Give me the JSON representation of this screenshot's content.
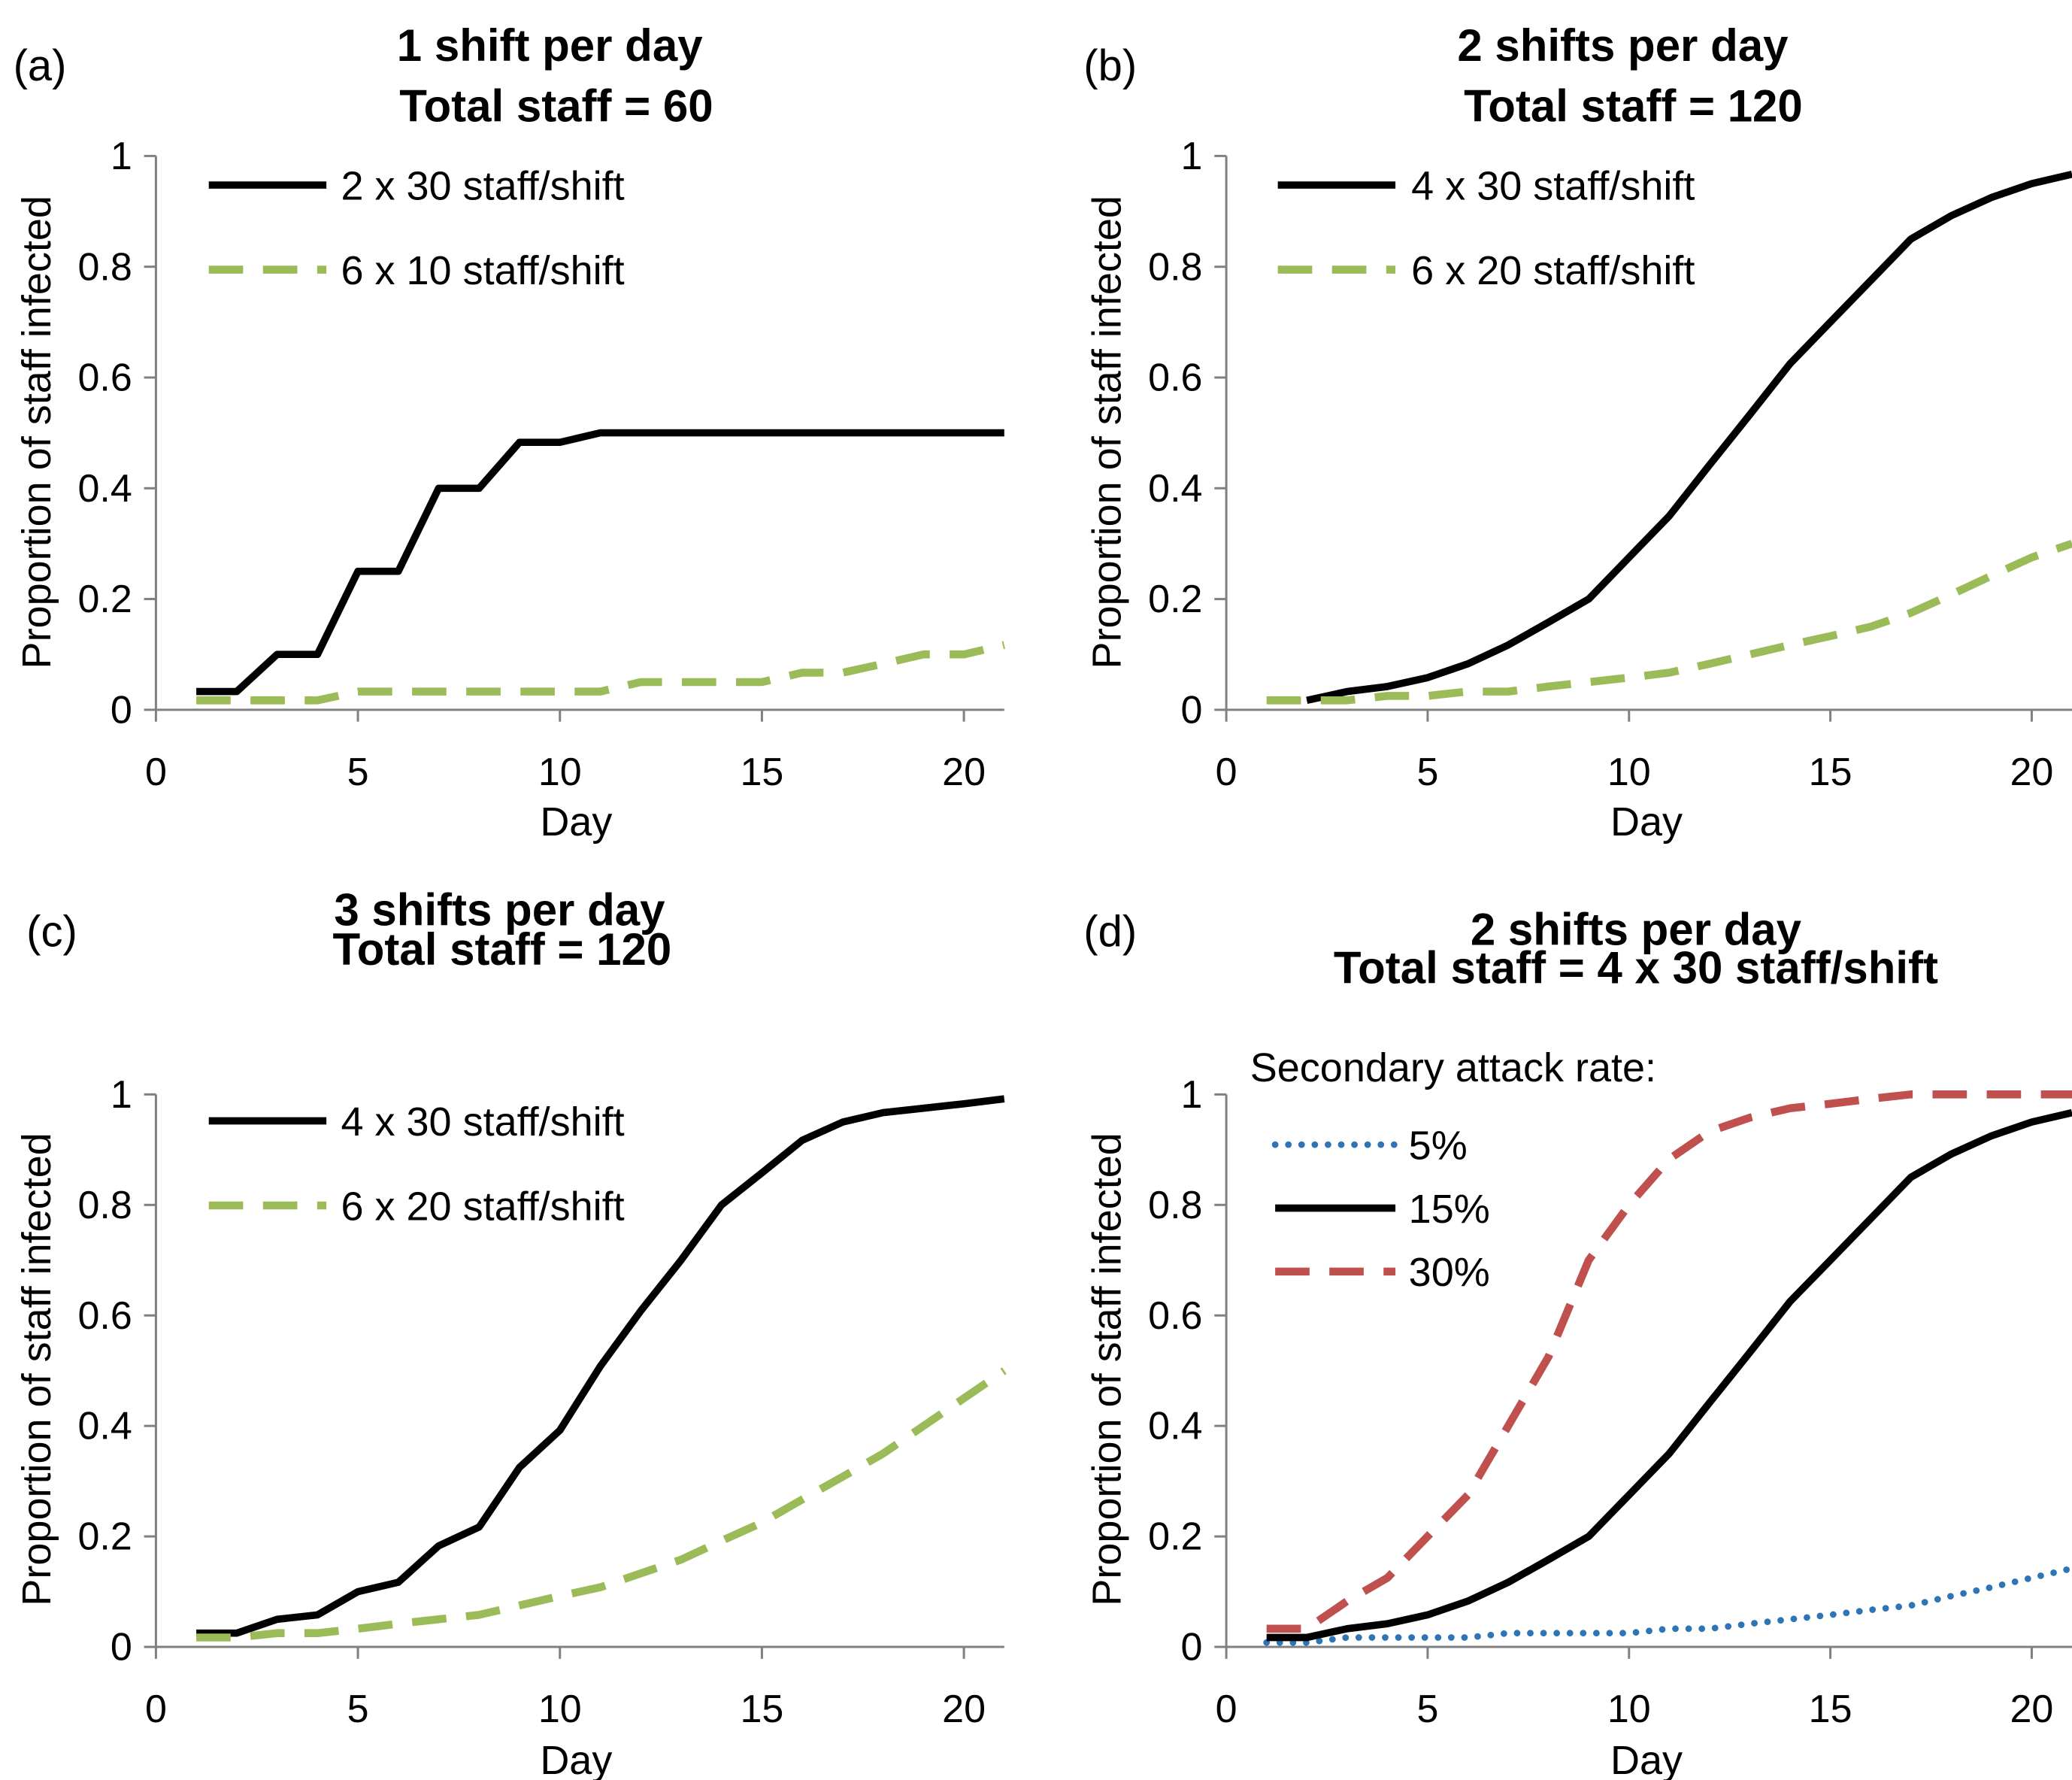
{
  "chart_data": [
    {
      "type": "line",
      "panel_label": "(a)",
      "title": "1 shift per day",
      "subtitle": "Total staff = 60",
      "xlabel": "Day",
      "ylabel": "Proportion of staff infected",
      "xlim": [
        0,
        21
      ],
      "ylim": [
        0,
        1
      ],
      "xticks": [
        "0",
        "5",
        "10",
        "15",
        "20"
      ],
      "yticks": [
        "0",
        "0.2",
        "0.4",
        "0.6",
        "0.8",
        "1"
      ],
      "grid": false,
      "legend_position": "top-left",
      "series": [
        {
          "name": "2 x 30 staff/shift",
          "color": "#000000",
          "style": "solid",
          "x": [
            1,
            2,
            3,
            4,
            5,
            6,
            7,
            8,
            9,
            10,
            11,
            12,
            13,
            14,
            15,
            16,
            17,
            18,
            19,
            20,
            21
          ],
          "y": [
            0.033,
            0.033,
            0.1,
            0.1,
            0.25,
            0.25,
            0.4,
            0.4,
            0.483,
            0.483,
            0.5,
            0.5,
            0.5,
            0.5,
            0.5,
            0.5,
            0.5,
            0.5,
            0.5,
            0.5,
            0.5
          ]
        },
        {
          "name": "6 x 10 staff/shift",
          "color": "#9BBB59",
          "style": "dashed",
          "x": [
            1,
            2,
            3,
            4,
            5,
            6,
            7,
            8,
            9,
            10,
            11,
            12,
            13,
            14,
            15,
            16,
            17,
            18,
            19,
            20,
            21
          ],
          "y": [
            0.017,
            0.017,
            0.017,
            0.017,
            0.033,
            0.033,
            0.033,
            0.033,
            0.033,
            0.033,
            0.033,
            0.05,
            0.05,
            0.05,
            0.05,
            0.067,
            0.067,
            0.083,
            0.1,
            0.1,
            0.117
          ]
        }
      ]
    },
    {
      "type": "line",
      "panel_label": "(b)",
      "title": "2 shifts per day",
      "subtitle": "Total staff = 120",
      "xlabel": "Day",
      "ylabel": "Proportion of staff infected",
      "xlim": [
        0,
        21
      ],
      "ylim": [
        0,
        1
      ],
      "xticks": [
        "0",
        "5",
        "10",
        "15",
        "20"
      ],
      "yticks": [
        "0",
        "0.2",
        "0.4",
        "0.6",
        "0.8",
        "1"
      ],
      "grid": false,
      "legend_position": "top-left",
      "series": [
        {
          "name": "4 x 30 staff/shift",
          "color": "#000000",
          "style": "solid",
          "x": [
            2,
            3,
            4,
            5,
            6,
            7,
            8,
            9,
            10,
            11,
            12,
            13,
            14,
            15,
            16,
            17,
            18,
            19,
            20,
            21
          ],
          "y": [
            0.017,
            0.033,
            0.042,
            0.058,
            0.083,
            0.117,
            0.158,
            0.2,
            0.275,
            0.35,
            0.442,
            0.533,
            0.625,
            0.7,
            0.775,
            0.85,
            0.892,
            0.925,
            0.95,
            0.967
          ]
        },
        {
          "name": "6 x 20 staff/shift",
          "color": "#9BBB59",
          "style": "dashed",
          "x": [
            1,
            2,
            3,
            4,
            5,
            6,
            7,
            8,
            9,
            10,
            11,
            12,
            13,
            14,
            15,
            16,
            17,
            18,
            19,
            20,
            21
          ],
          "y": [
            0.017,
            0.017,
            0.017,
            0.025,
            0.025,
            0.033,
            0.033,
            0.042,
            0.05,
            0.058,
            0.067,
            0.083,
            0.1,
            0.117,
            0.133,
            0.15,
            0.175,
            0.208,
            0.242,
            0.275,
            0.3
          ]
        }
      ]
    },
    {
      "type": "line",
      "panel_label": "(c)",
      "title": "3 shifts per day",
      "subtitle": "Total staff = 120",
      "xlabel": "Day",
      "ylabel": "Proportion of staff infected",
      "xlim": [
        0,
        21
      ],
      "ylim": [
        0,
        1
      ],
      "xticks": [
        "0",
        "5",
        "10",
        "15",
        "20"
      ],
      "yticks": [
        "0",
        "0.2",
        "0.4",
        "0.6",
        "0.8",
        "1"
      ],
      "grid": false,
      "legend_position": "top-left",
      "series": [
        {
          "name": "4 x 30 staff/shift",
          "color": "#000000",
          "style": "solid",
          "x": [
            1,
            2,
            3,
            4,
            5,
            6,
            7,
            8,
            9,
            10,
            11,
            12,
            13,
            14,
            15,
            16,
            17,
            18,
            19,
            20,
            21
          ],
          "y": [
            0.025,
            0.025,
            0.05,
            0.058,
            0.1,
            0.117,
            0.183,
            0.217,
            0.325,
            0.392,
            0.508,
            0.608,
            0.7,
            0.8,
            0.858,
            0.917,
            0.95,
            0.967,
            0.975,
            0.983,
            0.992
          ]
        },
        {
          "name": "6 x 20 staff/shift",
          "color": "#9BBB59",
          "style": "dashed",
          "x": [
            1,
            2,
            3,
            4,
            5,
            6,
            7,
            8,
            9,
            10,
            11,
            12,
            13,
            14,
            15,
            16,
            17,
            18,
            19,
            20,
            21
          ],
          "y": [
            0.017,
            0.017,
            0.025,
            0.025,
            0.033,
            0.042,
            0.05,
            0.058,
            0.075,
            0.092,
            0.108,
            0.133,
            0.158,
            0.192,
            0.225,
            0.267,
            0.308,
            0.35,
            0.4,
            0.45,
            0.5
          ]
        }
      ]
    },
    {
      "type": "line",
      "panel_label": "(d)",
      "title": "2 shifts per day",
      "subtitle": "Total staff = 4 x 30 staff/shift",
      "xlabel": "Day",
      "ylabel": "Proportion of staff infected",
      "xlim": [
        0,
        21
      ],
      "ylim": [
        0,
        1
      ],
      "xticks": [
        "0",
        "5",
        "10",
        "15",
        "20"
      ],
      "yticks": [
        "0",
        "0.2",
        "0.4",
        "0.6",
        "0.8",
        "1"
      ],
      "grid": false,
      "legend_position": "top-left",
      "legend_title": "Secondary attack rate:",
      "series": [
        {
          "name": "5%",
          "color": "#2E75B6",
          "style": "dotted",
          "x": [
            1,
            2,
            3,
            4,
            5,
            6,
            7,
            8,
            9,
            10,
            11,
            12,
            13,
            14,
            15,
            16,
            17,
            18,
            19,
            20,
            21
          ],
          "y": [
            0.008,
            0.008,
            0.017,
            0.017,
            0.017,
            0.017,
            0.025,
            0.025,
            0.025,
            0.025,
            0.033,
            0.033,
            0.042,
            0.05,
            0.058,
            0.067,
            0.075,
            0.092,
            0.108,
            0.125,
            0.142
          ]
        },
        {
          "name": "15%",
          "color": "#000000",
          "style": "solid",
          "x": [
            1,
            2,
            3,
            4,
            5,
            6,
            7,
            8,
            9,
            10,
            11,
            12,
            13,
            14,
            15,
            16,
            17,
            18,
            19,
            20,
            21
          ],
          "y": [
            0.017,
            0.017,
            0.033,
            0.042,
            0.058,
            0.083,
            0.117,
            0.158,
            0.2,
            0.275,
            0.35,
            0.442,
            0.533,
            0.625,
            0.7,
            0.775,
            0.85,
            0.892,
            0.925,
            0.95,
            0.967
          ]
        },
        {
          "name": "30%",
          "color": "#C0504D",
          "style": "dashed",
          "x": [
            1,
            2,
            3,
            4,
            5,
            6,
            7,
            8,
            9,
            10,
            11,
            12,
            13,
            14,
            15,
            16,
            17,
            18,
            19,
            20,
            21
          ],
          "y": [
            0.033,
            0.033,
            0.083,
            0.125,
            0.2,
            0.275,
            0.4,
            0.525,
            0.7,
            0.8,
            0.883,
            0.933,
            0.958,
            0.975,
            0.983,
            0.992,
            1.0,
            1.0,
            1.0,
            1.0,
            1.0
          ]
        }
      ]
    }
  ]
}
